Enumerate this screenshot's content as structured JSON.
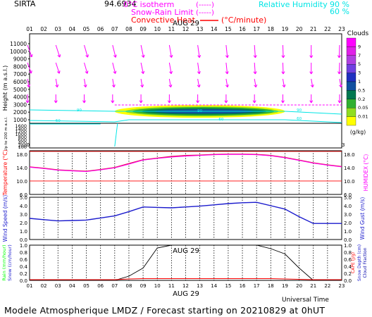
{
  "header": {
    "station": "SIRTA",
    "station_code": "94.6934",
    "legend_isotherm": "0°C isotherm",
    "legend_isotherm_dash": "(-----)",
    "legend_snow": "Snow-Rain Limit",
    "legend_snow_dash": "(-----)",
    "legend_conv": "Convective Heat",
    "legend_conv_unit": "(°C/minute)",
    "legend_rh": "Relative Humidity",
    "rh_90": "90 %",
    "rh_60": "60 %"
  },
  "hours": [
    "01",
    "02",
    "03",
    "04",
    "05",
    "06",
    "07",
    "08",
    "09",
    "10",
    "11",
    "12",
    "13",
    "14",
    "15",
    "16",
    "17",
    "18",
    "19",
    "20",
    "21",
    "22",
    "23"
  ],
  "date_label": "AUG 29",
  "footer": "Modele Atmospherique LMDZ / Forecast starting on 20210829 at 0hUT",
  "universal_time": "Universal Time",
  "colors": {
    "magenta": "#ff00ff",
    "cyan": "#00e5e5",
    "red": "#ff0000",
    "crimson": "#e8115b",
    "blue": "#1a1acd",
    "navy": "#0000aa",
    "green": "#00ff00"
  },
  "chart_data": [
    {
      "type": "heatmap",
      "title": "",
      "ylabel": "Height (m a.s.l.)",
      "ylabel_low": "Up to 200 m a.s.l.",
      "y_ticks_upper": [
        11000,
        10000,
        9000,
        8000,
        7000,
        6000,
        5000,
        4000,
        3000,
        2000,
        1000
      ],
      "y_ticks_lower": [
        1600,
        1400,
        1200,
        1000,
        800,
        600,
        400,
        200,
        100
      ],
      "colorbar_title": "Clouds",
      "colorbar_unit": "(g/kg)",
      "colorbar_ticks": [
        "9",
        "7",
        "5",
        "3",
        "1",
        "0.5",
        "0.2",
        "0.05",
        "0.01"
      ],
      "colorbar_colors": [
        "#ff00ff",
        "#e020e8",
        "#b040e0",
        "#7040e0",
        "#2030c0",
        "#1050a0",
        "#007850",
        "#30b030",
        "#90dd20",
        "#ffff00"
      ],
      "rh_contour_labels": [
        "90",
        "60",
        "90",
        "60",
        "90",
        "60"
      ],
      "wind_arrows": "magenta",
      "cloud_layer": {
        "start_hour": 7,
        "end_hour": 19,
        "altitude_m": [
          1700,
          2500
        ],
        "max_gkg": 0.5
      }
    },
    {
      "type": "line",
      "title": "",
      "ylabel": "Temperature (°C)",
      "ylabel_right": "HUMIDEX (°C)",
      "ylim": [
        6,
        19
      ],
      "y_ticks": [
        6.0,
        10.0,
        14.0,
        18.0
      ],
      "y_ticks_right": [
        6.0,
        10.0,
        14.0,
        18.0
      ],
      "x": [
        1,
        2,
        3,
        4,
        5,
        6,
        7,
        8,
        9,
        10,
        11,
        12,
        13,
        14,
        15,
        16,
        17,
        18,
        19,
        20,
        21,
        22,
        23
      ],
      "series": [
        {
          "name": "",
          "values": [
            14.2,
            13.8,
            13.3,
            13.1,
            12.9,
            13.4,
            14.0,
            15.2,
            16.3,
            16.8,
            17.3,
            17.6,
            17.7,
            17.9,
            18.0,
            18.0,
            17.9,
            17.6,
            17.0,
            16.2,
            15.4,
            14.8,
            14.3
          ]
        },
        {
          "name": "",
          "values": [
            14.1,
            13.7,
            13.2,
            13.0,
            12.8,
            13.3,
            13.9,
            15.0,
            16.2,
            16.7,
            17.1,
            17.4,
            17.6,
            17.8,
            17.9,
            17.9,
            17.8,
            17.5,
            16.9,
            16.1,
            15.3,
            14.7,
            14.2
          ]
        }
      ],
      "red_lines": [
        18.8,
        10.0
      ]
    },
    {
      "type": "line",
      "title": "",
      "ylabel": "Wind Speed (m/s)",
      "ylabel_right": "Wind Gust (m/s)",
      "ylim": [
        0,
        5
      ],
      "y_ticks": [
        0.0,
        1.0,
        2.0,
        3.0,
        4.0,
        5.0
      ],
      "y_ticks_right": [
        0.0,
        1.0,
        2.0,
        3.0,
        4.0,
        5.0
      ],
      "x": [
        1,
        2,
        3,
        4,
        5,
        6,
        7,
        8,
        9,
        10,
        11,
        12,
        13,
        14,
        15,
        16,
        17,
        18,
        19,
        20,
        21,
        22,
        23
      ],
      "series": [
        {
          "name": "",
          "values": [
            2.5,
            2.35,
            2.2,
            2.25,
            2.3,
            2.55,
            2.8,
            3.3,
            3.85,
            3.8,
            3.75,
            3.85,
            3.95,
            4.1,
            4.25,
            4.35,
            4.4,
            4.0,
            3.6,
            2.7,
            1.9,
            1.9,
            1.9
          ]
        }
      ]
    },
    {
      "type": "line",
      "title": "",
      "ylabel": "Rain (mm/hour)",
      "ylabel_2": "Snow (cm/hour)",
      "ylabel_right": "CAPE (J/g)",
      "ylabel_right_2": "Snow Depth (cm)",
      "ylabel_right_3": "Cloud Fraction",
      "ylim": [
        0,
        1
      ],
      "y_ticks": [
        0.0,
        0.2,
        0.4,
        0.6,
        0.8,
        1.0
      ],
      "y_ticks_right": [
        0.0,
        0.2,
        0.4,
        0.6,
        0.8,
        1.0
      ],
      "x": [
        1,
        2,
        3,
        4,
        5,
        6,
        7,
        8,
        9,
        10,
        11,
        12,
        13,
        14,
        15,
        16,
        17,
        18,
        19,
        20,
        21,
        22,
        23
      ],
      "series": [
        {
          "name": "",
          "values": [
            0,
            0,
            0,
            0,
            0,
            0,
            0,
            0.12,
            0.35,
            0.92,
            1,
            1,
            1,
            1,
            1,
            1,
            1,
            0.9,
            0.75,
            0.35,
            0,
            0,
            0
          ]
        },
        {
          "name": "",
          "values": [
            0.02,
            0.02,
            0.02,
            0.02,
            0.02,
            0.02,
            0.02,
            0.04,
            0.05,
            0.05,
            0.05,
            0.05,
            0.05,
            0.05,
            0.05,
            0.05,
            0.05,
            0.05,
            0.04,
            0.03,
            0.02,
            0.02,
            0.02
          ]
        }
      ]
    }
  ]
}
